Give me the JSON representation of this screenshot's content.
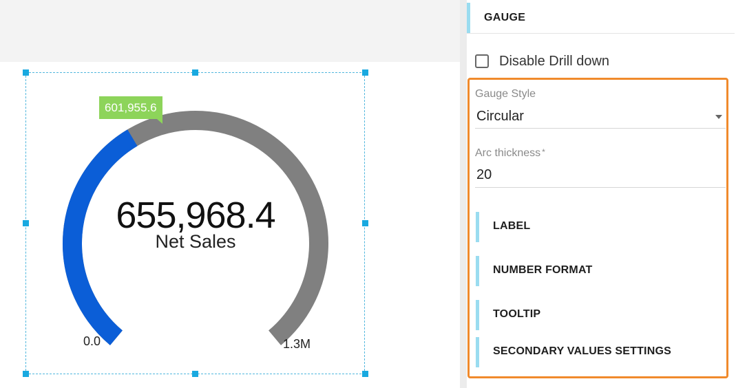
{
  "gauge": {
    "current_value_label": "601,955.6",
    "main_value": "655,968.4",
    "measure_name": "Net Sales",
    "min_label": "0.0",
    "max_label": "1.3M",
    "fill_fraction": 0.39,
    "fill_color": "#0b5ed7",
    "track_color": "#808080",
    "tooltip_color": "#8dd45a"
  },
  "panel": {
    "title": "GAUGE",
    "disable_drill_down_label": "Disable Drill down",
    "disable_drill_down_checked": false,
    "gauge_style_label": "Gauge Style",
    "gauge_style_value": "Circular",
    "arc_thickness_label": "Arc thickness",
    "arc_thickness_required": "*",
    "arc_thickness_value": "20",
    "sections": [
      {
        "label": "LABEL"
      },
      {
        "label": "NUMBER FORMAT"
      },
      {
        "label": "TOOLTIP"
      },
      {
        "label": "SECONDARY VALUES SETTINGS"
      }
    ],
    "highlight_color": "#f08a2c",
    "accent_color": "#9adcf0"
  }
}
